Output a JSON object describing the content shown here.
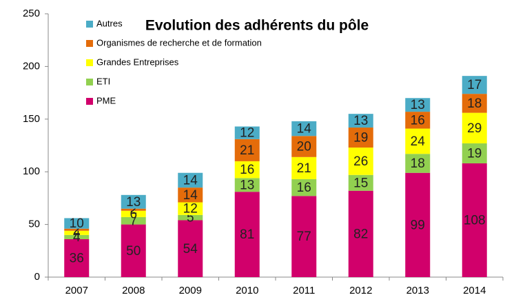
{
  "chart_data": {
    "type": "bar",
    "stacked": true,
    "title": "Evolution des adhérents du pôle",
    "categories": [
      "2007",
      "2008",
      "2009",
      "2010",
      "2011",
      "2012",
      "2013",
      "2014"
    ],
    "series": [
      {
        "name": "PME",
        "color": "#d1006b",
        "values": [
          36,
          50,
          54,
          81,
          77,
          82,
          99,
          108
        ]
      },
      {
        "name": "ETI",
        "color": "#92d050",
        "values": [
          4,
          7,
          5,
          13,
          16,
          15,
          18,
          19
        ]
      },
      {
        "name": "Grandes Entreprises",
        "color": "#ffff00",
        "values": [
          4,
          6,
          12,
          16,
          21,
          26,
          24,
          29
        ]
      },
      {
        "name": "Organismes de recherche et de formation",
        "color": "#e46c0a",
        "values": [
          2,
          2,
          14,
          21,
          20,
          19,
          16,
          18
        ]
      },
      {
        "name": "Autres",
        "color": "#4bacc6",
        "values": [
          10,
          13,
          14,
          12,
          14,
          13,
          13,
          17
        ]
      }
    ],
    "ylim": [
      0,
      250
    ],
    "yticks": [
      0,
      50,
      100,
      150,
      200,
      250
    ],
    "legend": "upper left"
  }
}
